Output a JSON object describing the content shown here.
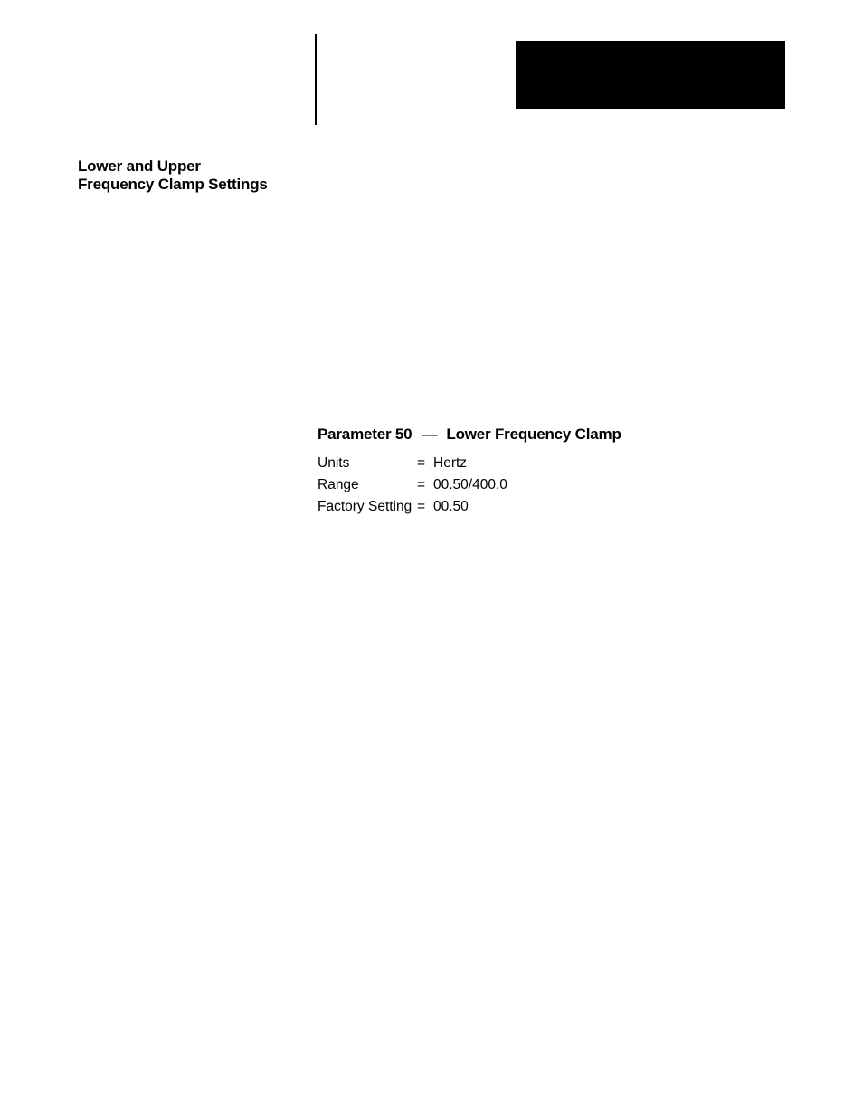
{
  "section_title_line1": "Lower and Upper",
  "section_title_line2": "Frequency Clamp Settings",
  "param": {
    "heading_left": "Parameter 50",
    "heading_sep": "––",
    "heading_right": "Lower Frequency Clamp",
    "rows": [
      {
        "label": "Units",
        "eq": "=",
        "value": "Hertz"
      },
      {
        "label": "Range",
        "eq": "=",
        "value": "00.50/400.0"
      },
      {
        "label": "Factory Setting",
        "eq": "=",
        "value": "00.50"
      }
    ]
  },
  "colors": {
    "background": "#ffffff",
    "text": "#000000",
    "accent_box": "#000000",
    "rule": "#000000"
  },
  "typography": {
    "heading_fontsize_pt": 13,
    "body_fontsize_pt": 11.5,
    "font_family": "Arial"
  }
}
